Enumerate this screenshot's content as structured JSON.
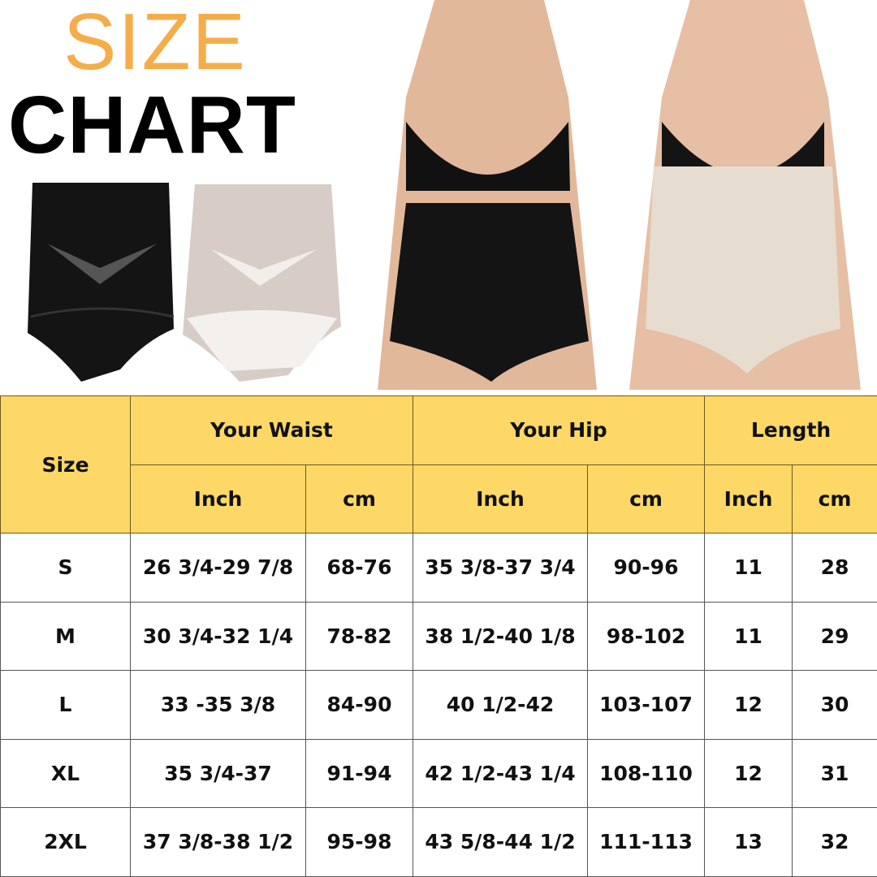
{
  "title": {
    "line1": "SIZE",
    "line2": "CHART"
  },
  "colors": {
    "title_accent": "#f5ad4a",
    "header_bg": "#fdd866"
  },
  "images": [
    "black-shapewear-product",
    "nude-shapewear-product",
    "model-black-shapewear",
    "model-nude-shapewear"
  ],
  "table": {
    "size_header": "Size",
    "groups": [
      "Your Waist",
      "Your Hip",
      "Length"
    ],
    "units": [
      "Inch",
      "cm",
      "Inch",
      "cm",
      "Inch",
      "cm"
    ],
    "rows": [
      [
        "S",
        "26 3/4-29 7/8",
        "68-76",
        "35 3/8-37 3/4",
        "90-96",
        "11",
        "28"
      ],
      [
        "M",
        "30 3/4-32 1/4",
        "78-82",
        "38 1/2-40 1/8",
        "98-102",
        "11",
        "29"
      ],
      [
        "L",
        "33 -35 3/8",
        "84-90",
        "40 1/2-42",
        "103-107",
        "12",
        "30"
      ],
      [
        "XL",
        "35 3/4-37",
        "91-94",
        "42 1/2-43 1/4",
        "108-110",
        "12",
        "31"
      ],
      [
        "2XL",
        "37 3/8-38 1/2",
        "95-98",
        "43 5/8-44 1/2",
        "111-113",
        "13",
        "32"
      ]
    ]
  }
}
